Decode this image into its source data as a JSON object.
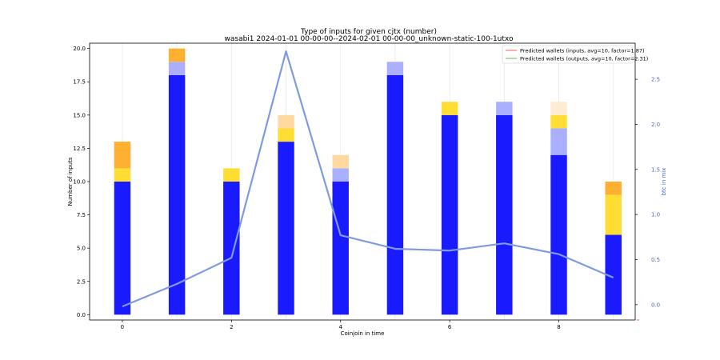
{
  "chart_data": {
    "type": "bar",
    "stacked": true,
    "title": "Type of inputs for given cjtx (number)",
    "subtitle": "wasabi1 2024-01-01 00-00-00--2024-02-01 00-00-00_unknown-static-100-1utxo",
    "xlabel": "Coinjoin in time",
    "ylabel": "Number of inputs",
    "ylabel_right": "btc in mix",
    "x": [
      0,
      1,
      2,
      3,
      4,
      5,
      6,
      7,
      8,
      9
    ],
    "xticks": [
      0,
      2,
      4,
      6,
      8
    ],
    "ylim": [
      -0.4,
      20.4
    ],
    "yticks": [
      0.0,
      2.5,
      5.0,
      7.5,
      10.0,
      12.5,
      15.0,
      17.5,
      20.0
    ],
    "ylim_right": [
      -0.17,
      2.9
    ],
    "yticks_right": [
      0.0,
      0.5,
      1.0,
      1.5,
      2.0,
      2.5
    ],
    "grid_x": true,
    "legend_position": "top-right",
    "series": [
      {
        "color": "#1a1aff",
        "values": [
          10,
          18,
          10,
          13,
          10,
          18,
          15,
          15,
          12,
          6
        ]
      },
      {
        "color": "#aab0ff",
        "values": [
          0,
          1,
          0,
          0,
          1,
          1,
          0,
          1,
          2,
          0
        ]
      },
      {
        "color": "#ffdd33",
        "values": [
          1,
          0,
          1,
          1,
          0,
          0,
          1,
          0,
          1,
          3
        ]
      },
      {
        "color": "#ffb030",
        "values": [
          2,
          1,
          0,
          0,
          0,
          0,
          0,
          0,
          0,
          1
        ]
      },
      {
        "color": "#ffd9a0",
        "values": [
          0,
          0,
          0,
          1,
          1,
          0,
          0,
          0,
          0,
          0
        ]
      },
      {
        "color": "#fdebd3",
        "values": [
          0,
          0,
          0,
          0,
          0,
          0,
          0,
          0,
          1,
          0
        ]
      }
    ],
    "line": {
      "color": "#7f9be0",
      "axis": "right",
      "values": [
        -0.02,
        0.23,
        0.52,
        2.81,
        0.77,
        0.62,
        0.6,
        0.68,
        0.56,
        0.3
      ]
    },
    "legend": [
      {
        "label": "Predicted wallets (inputs, avg=10, factor=1.87)",
        "color": "#f08070"
      },
      {
        "label": "Predicted wallets (outputs, avg=10, factor=2.31)",
        "color": "#6ccf6c"
      }
    ]
  }
}
